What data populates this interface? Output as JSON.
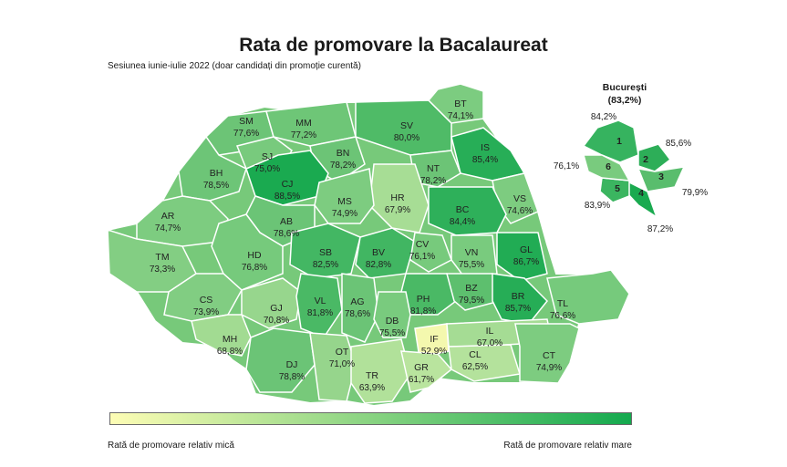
{
  "title": "Rata de promovare la Bacalaureat",
  "subtitle": "Sesiunea iunie-iulie 2022 (doar candidați din promoție curentă)",
  "legend": {
    "low_label": "Rată de promovare relativ mică",
    "high_label": "Rată de promovare relativ mare",
    "low_color": "#fdfdb5",
    "high_color": "#14a94e"
  },
  "counties": [
    {
      "code": "SM",
      "value": "77,6%"
    },
    {
      "code": "MM",
      "value": "77,2%"
    },
    {
      "code": "SV",
      "value": "80,0%"
    },
    {
      "code": "BT",
      "value": "74,1%"
    },
    {
      "code": "SJ",
      "value": "75,0%"
    },
    {
      "code": "BN",
      "value": "78,2%"
    },
    {
      "code": "IS",
      "value": "85,4%"
    },
    {
      "code": "BH",
      "value": "78,5%"
    },
    {
      "code": "CJ",
      "value": "88,5%"
    },
    {
      "code": "NT",
      "value": "78,2%"
    },
    {
      "code": "HR",
      "value": "67,9%"
    },
    {
      "code": "MS",
      "value": "74,9%"
    },
    {
      "code": "VS",
      "value": "74,6%"
    },
    {
      "code": "AR",
      "value": "74,7%"
    },
    {
      "code": "AB",
      "value": "78,6%"
    },
    {
      "code": "BC",
      "value": "84,4%"
    },
    {
      "code": "TM",
      "value": "73,3%"
    },
    {
      "code": "HD",
      "value": "76,8%"
    },
    {
      "code": "SB",
      "value": "82,5%"
    },
    {
      "code": "BV",
      "value": "82,8%"
    },
    {
      "code": "CV",
      "value": "76,1%"
    },
    {
      "code": "VN",
      "value": "75,5%"
    },
    {
      "code": "GL",
      "value": "86,7%"
    },
    {
      "code": "CS",
      "value": "73,9%"
    },
    {
      "code": "GJ",
      "value": "70,8%"
    },
    {
      "code": "VL",
      "value": "81,8%"
    },
    {
      "code": "AG",
      "value": "78,6%"
    },
    {
      "code": "PH",
      "value": "81,8%"
    },
    {
      "code": "BZ",
      "value": "79,5%"
    },
    {
      "code": "BR",
      "value": "85,7%"
    },
    {
      "code": "TL",
      "value": "76,6%"
    },
    {
      "code": "DB",
      "value": "75,5%"
    },
    {
      "code": "MH",
      "value": "68,8%"
    },
    {
      "code": "IF",
      "value": "52,9%"
    },
    {
      "code": "IL",
      "value": "67,0%"
    },
    {
      "code": "DJ",
      "value": "78,8%"
    },
    {
      "code": "OT",
      "value": "71,0%"
    },
    {
      "code": "TR",
      "value": "63,9%"
    },
    {
      "code": "GR",
      "value": "61,7%"
    },
    {
      "code": "CL",
      "value": "62,5%"
    },
    {
      "code": "CT",
      "value": "74,9%"
    }
  ],
  "bucuresti": {
    "name": "București",
    "total": "(83,2%)",
    "sectors": [
      {
        "sector": "1",
        "value": "84,2%"
      },
      {
        "sector": "2",
        "value": "85,6%"
      },
      {
        "sector": "3",
        "value": "79,9%"
      },
      {
        "sector": "4",
        "value": "87,2%"
      },
      {
        "sector": "5",
        "value": "83,9%"
      },
      {
        "sector": "6",
        "value": "76,1%"
      }
    ]
  }
}
